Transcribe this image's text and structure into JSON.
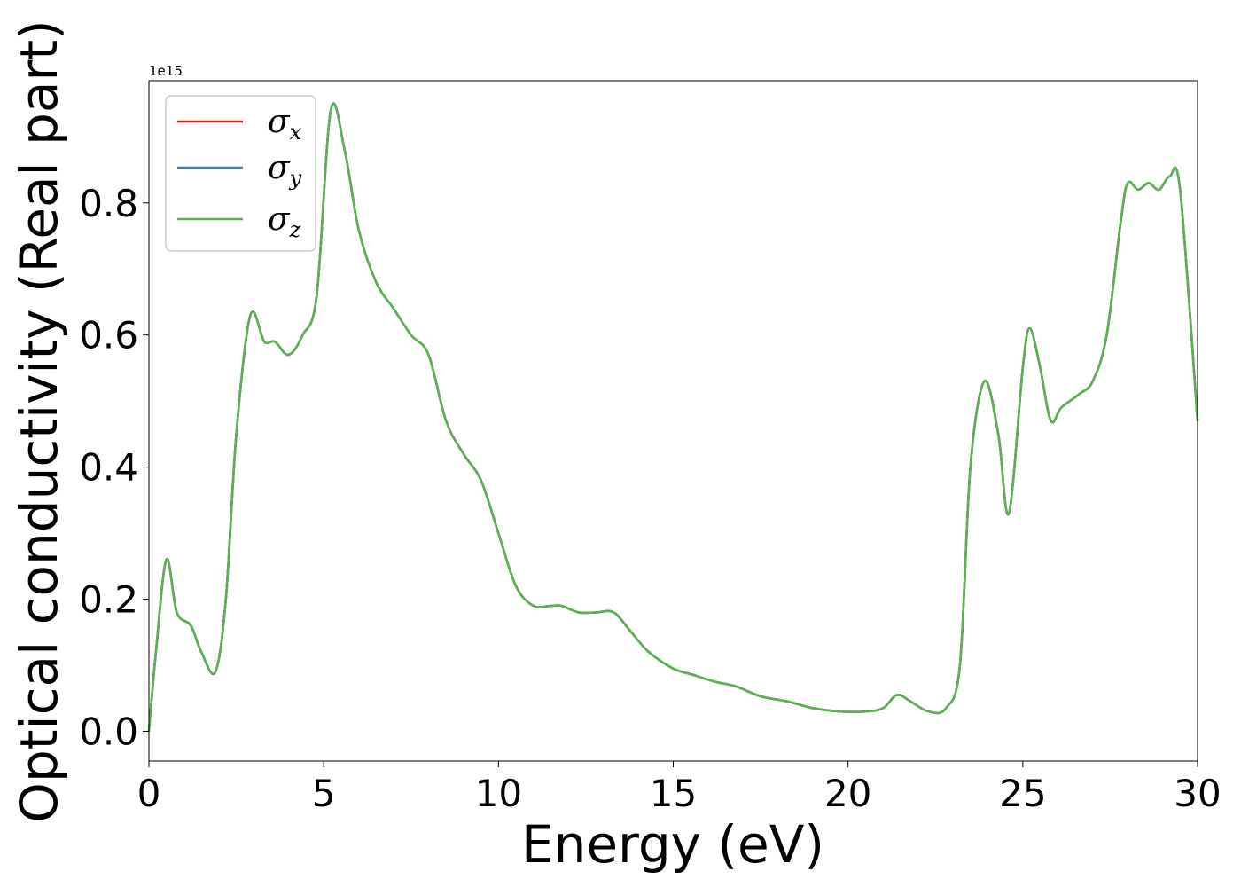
{
  "chart_data": {
    "type": "line",
    "xlabel": "Energy (eV)",
    "ylabel": "Optical conductivity (Real part)",
    "y_offset_text": "1e15",
    "xlim": [
      0,
      30
    ],
    "ylim": [
      -0.045,
      0.985
    ],
    "y_scale_multiplier": 1000000000000000.0,
    "xticks": [
      0,
      5,
      10,
      15,
      20,
      25,
      30
    ],
    "xtick_labels": [
      "0",
      "5",
      "10",
      "15",
      "20",
      "25",
      "30"
    ],
    "yticks": [
      0.0,
      0.2,
      0.4,
      0.6,
      0.8
    ],
    "ytick_labels": [
      "0.0",
      "0.2",
      "0.4",
      "0.6",
      "0.8"
    ],
    "grid": false,
    "legend_position": "top-left",
    "colors": {
      "sigma_x": "#d62728",
      "sigma_y": "#3b80b8",
      "sigma_z": "#5ab24e"
    },
    "legend": [
      {
        "symbol": "σ",
        "subscript": "x",
        "color": "#d62728"
      },
      {
        "symbol": "σ",
        "subscript": "y",
        "color": "#3b80b8"
      },
      {
        "symbol": "σ",
        "subscript": "z",
        "color": "#5ab24e"
      }
    ],
    "x": [
      0.0,
      0.2,
      0.5,
      0.8,
      1.2,
      1.5,
      1.9,
      2.2,
      2.5,
      2.9,
      3.3,
      3.6,
      4.0,
      4.4,
      4.8,
      5.2,
      5.6,
      6.0,
      6.5,
      7.0,
      7.5,
      8.0,
      8.5,
      9.0,
      9.5,
      10.0,
      10.5,
      11.0,
      11.5,
      11.8,
      12.3,
      12.8,
      13.3,
      13.8,
      14.3,
      15.0,
      15.6,
      16.2,
      16.8,
      17.5,
      18.3,
      19.0,
      19.8,
      20.5,
      21.0,
      21.4,
      21.8,
      22.3,
      22.8,
      23.2,
      23.5,
      23.9,
      24.3,
      24.6,
      25.0,
      25.2,
      25.5,
      25.8,
      26.1,
      26.6,
      27.0,
      27.4,
      27.8,
      28.0,
      28.3,
      28.6,
      28.9,
      29.2,
      29.5,
      30.0
    ],
    "series": [
      {
        "name": "σ_x",
        "values": [
          0.0,
          0.12,
          0.26,
          0.18,
          0.16,
          0.12,
          0.09,
          0.2,
          0.45,
          0.63,
          0.59,
          0.59,
          0.57,
          0.6,
          0.66,
          0.94,
          0.88,
          0.76,
          0.68,
          0.64,
          0.6,
          0.57,
          0.47,
          0.42,
          0.38,
          0.3,
          0.22,
          0.19,
          0.19,
          0.19,
          0.18,
          0.18,
          0.18,
          0.15,
          0.12,
          0.095,
          0.085,
          0.075,
          0.068,
          0.053,
          0.045,
          0.035,
          0.03,
          0.03,
          0.035,
          0.055,
          0.045,
          0.03,
          0.035,
          0.1,
          0.4,
          0.53,
          0.45,
          0.33,
          0.55,
          0.61,
          0.55,
          0.47,
          0.49,
          0.51,
          0.53,
          0.6,
          0.77,
          0.83,
          0.82,
          0.83,
          0.82,
          0.84,
          0.82,
          0.47
        ]
      },
      {
        "name": "σ_y",
        "values": [
          0.0,
          0.12,
          0.26,
          0.18,
          0.16,
          0.12,
          0.09,
          0.2,
          0.45,
          0.63,
          0.59,
          0.59,
          0.57,
          0.6,
          0.66,
          0.94,
          0.88,
          0.76,
          0.68,
          0.64,
          0.6,
          0.57,
          0.47,
          0.42,
          0.38,
          0.3,
          0.22,
          0.19,
          0.19,
          0.19,
          0.18,
          0.18,
          0.18,
          0.15,
          0.12,
          0.095,
          0.085,
          0.075,
          0.068,
          0.053,
          0.045,
          0.035,
          0.03,
          0.03,
          0.035,
          0.055,
          0.045,
          0.03,
          0.035,
          0.1,
          0.4,
          0.53,
          0.45,
          0.33,
          0.55,
          0.61,
          0.55,
          0.47,
          0.49,
          0.51,
          0.53,
          0.6,
          0.77,
          0.83,
          0.82,
          0.83,
          0.82,
          0.84,
          0.82,
          0.47
        ]
      },
      {
        "name": "σ_z",
        "values": [
          0.0,
          0.12,
          0.26,
          0.18,
          0.16,
          0.12,
          0.09,
          0.2,
          0.45,
          0.63,
          0.59,
          0.59,
          0.57,
          0.6,
          0.66,
          0.94,
          0.88,
          0.76,
          0.68,
          0.64,
          0.6,
          0.57,
          0.47,
          0.42,
          0.38,
          0.3,
          0.22,
          0.19,
          0.19,
          0.19,
          0.18,
          0.18,
          0.18,
          0.15,
          0.12,
          0.095,
          0.085,
          0.075,
          0.068,
          0.053,
          0.045,
          0.035,
          0.03,
          0.03,
          0.035,
          0.055,
          0.045,
          0.03,
          0.035,
          0.1,
          0.4,
          0.53,
          0.45,
          0.33,
          0.55,
          0.61,
          0.55,
          0.47,
          0.49,
          0.51,
          0.53,
          0.6,
          0.77,
          0.83,
          0.82,
          0.83,
          0.82,
          0.84,
          0.82,
          0.47
        ]
      }
    ]
  }
}
